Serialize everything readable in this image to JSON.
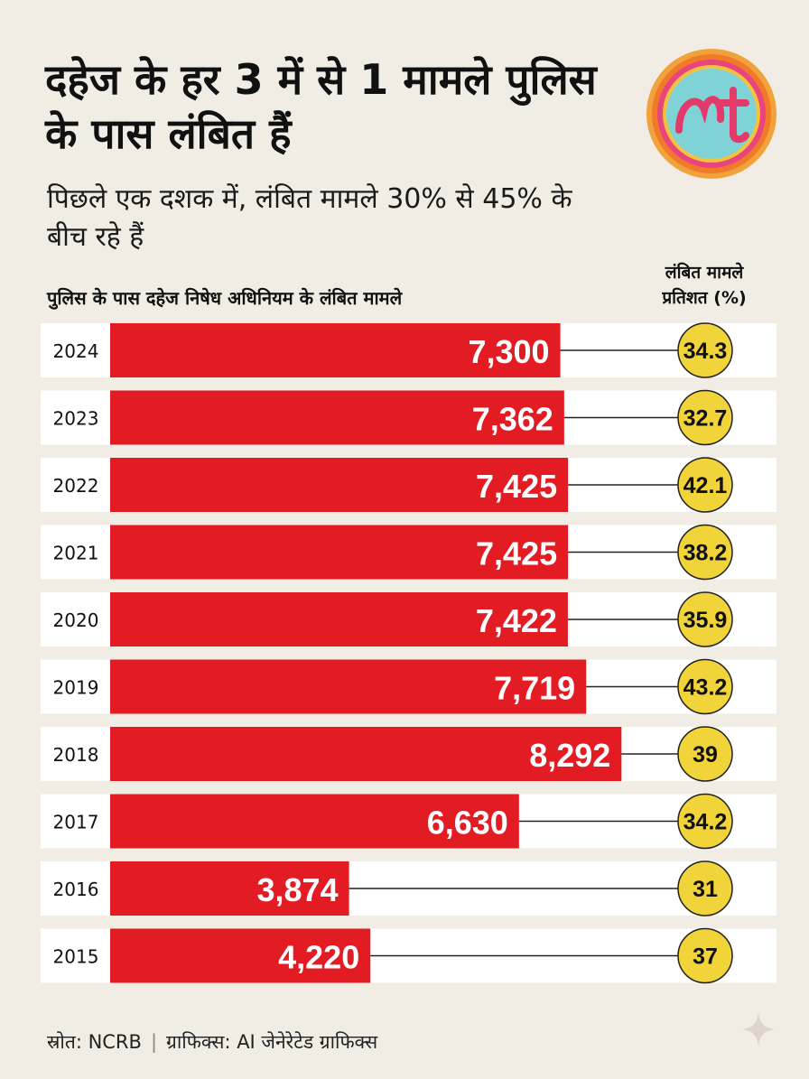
{
  "header": {
    "title": "दहेज के हर 3 में से 1 मामले पुलिस के पास लंबित हैं",
    "subtitle": "पिछले एक दशक में, लंबित मामले 30% से 45% के बीच रहे हैं"
  },
  "columns": {
    "left_label": "पुलिस के पास दहेज निषेध अधिनियम के लंबित मामले",
    "right_label_line1": "लंबित मामले",
    "right_label_line2": "प्रतिशत (%)"
  },
  "chart_data": {
    "type": "bar",
    "orientation": "horizontal",
    "categories": [
      "2024",
      "2023",
      "2022",
      "2021",
      "2020",
      "2019",
      "2018",
      "2017",
      "2016",
      "2015"
    ],
    "series": [
      {
        "values": [
          7300,
          7362,
          7425,
          7425,
          7422,
          7719,
          8292,
          6630,
          3874,
          4220
        ]
      }
    ],
    "value_labels": [
      "7,300",
      "7,362",
      "7,425",
      "7,425",
      "7,422",
      "7,719",
      "8,292",
      "6,630",
      "3,874",
      "4,220"
    ],
    "pending_percent": [
      34.3,
      32.7,
      42.1,
      38.2,
      35.9,
      43.2,
      39,
      34.2,
      31,
      37
    ],
    "pending_percent_labels": [
      "34.3",
      "32.7",
      "42.1",
      "38.2",
      "35.9",
      "43.2",
      "39",
      "34.2",
      "31",
      "37"
    ],
    "colors": {
      "bar": "#e31b23",
      "bubble": "#f1d33a",
      "row_bg": "#ffffff"
    }
  },
  "footer": {
    "source": "स्रोत: NCRB",
    "graphics": "ग्राफिक्स: AI जेनेरेटेड ग्राफिक्स"
  },
  "logo": {
    "icon": "publisher-logo",
    "text": "𝓂𝓉"
  }
}
